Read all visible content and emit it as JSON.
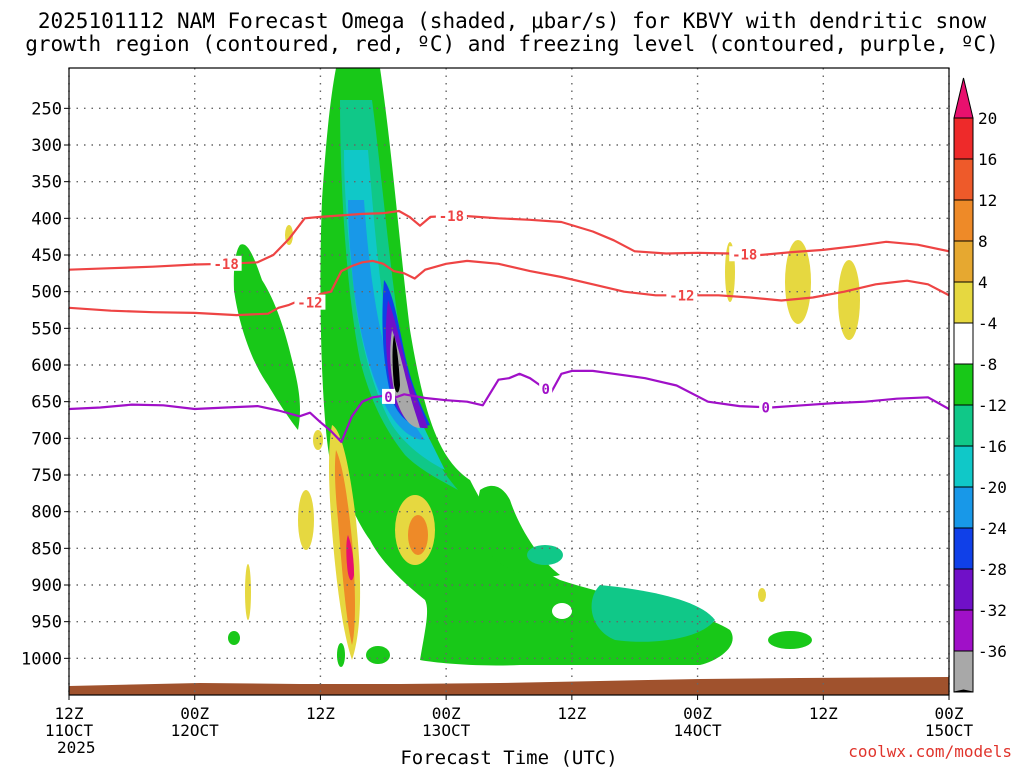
{
  "chart_data": {
    "type": "heatmap",
    "title_line1": "2025101112 NAM Forecast Omega (shaded, μbar/s) for KBVY with dendritic snow",
    "title_line2": "growth region (contoured, red, ºC) and freezing level (contoured, purple, ºC)",
    "xlabel": "Forecast Time (UTC)",
    "ylabel": "",
    "credit": "coolwx.com/models",
    "x_range_hours": [
      0,
      84
    ],
    "y_range_hPa": [
      1050,
      195
    ],
    "x_ticks": [
      {
        "hour": 0,
        "line1": "12Z",
        "line2": "11OCT",
        "line3": "2025"
      },
      {
        "hour": 12,
        "line1": "00Z",
        "line2": "12OCT",
        "line3": ""
      },
      {
        "hour": 24,
        "line1": "12Z",
        "line2": "",
        "line3": ""
      },
      {
        "hour": 36,
        "line1": "00Z",
        "line2": "13OCT",
        "line3": ""
      },
      {
        "hour": 48,
        "line1": "12Z",
        "line2": "",
        "line3": ""
      },
      {
        "hour": 60,
        "line1": "00Z",
        "line2": "14OCT",
        "line3": ""
      },
      {
        "hour": 72,
        "line1": "12Z",
        "line2": "",
        "line3": ""
      },
      {
        "hour": 84,
        "line1": "00Z",
        "line2": "15OCT",
        "line3": ""
      }
    ],
    "y_ticks": [
      250,
      300,
      350,
      400,
      450,
      500,
      550,
      600,
      650,
      700,
      750,
      800,
      850,
      900,
      950,
      1000
    ],
    "colorbar": {
      "labels": [
        "20",
        "16",
        "12",
        "8",
        "4",
        "-4",
        "-8",
        "-12",
        "-16",
        "-20",
        "-24",
        "-28",
        "-32",
        "-36"
      ],
      "colors": [
        "#e8106e",
        "#ee2a2a",
        "#ee5a2a",
        "#ee8a28",
        "#e6a830",
        "#e6d840",
        "#ffffff",
        "#18c818",
        "#10c888",
        "#10c8c8",
        "#1898e8",
        "#1040e8",
        "#7010c8",
        "#a010c8",
        "#a8a8a8",
        "#000000"
      ]
    },
    "series": [
      {
        "name": "-18",
        "color": "#ee4444",
        "label_hours": [
          15,
          36.5,
          64.5
        ],
        "x": [
          0,
          4,
          8,
          12,
          15,
          18,
          19.5,
          21,
          22.5,
          24,
          26,
          28,
          30,
          31.5,
          32.5,
          33.5,
          34.5,
          36,
          38,
          41,
          44,
          47,
          50,
          52,
          54,
          57,
          60,
          63,
          66,
          69,
          72,
          75,
          78,
          81,
          84
        ],
        "y": [
          470,
          468,
          466,
          463,
          462,
          460,
          450,
          428,
          400,
          398,
          396,
          394,
          393,
          390,
          398,
          410,
          398,
          397,
          397,
          400,
          402,
          405,
          418,
          430,
          445,
          448,
          447,
          448,
          450,
          446,
          443,
          438,
          432,
          436,
          445
        ]
      },
      {
        "name": "-12",
        "color": "#ee4444",
        "label_hours": [
          23,
          58.5
        ],
        "x": [
          0,
          4,
          8,
          12,
          16,
          19,
          20,
          21,
          22,
          23,
          24,
          25,
          26,
          27,
          28,
          29,
          30,
          31,
          32,
          33,
          34,
          36,
          38,
          41,
          44,
          47,
          50,
          53,
          56,
          59,
          62,
          65,
          68,
          71,
          74,
          77,
          80,
          82,
          84
        ],
        "y": [
          522,
          526,
          528,
          529,
          532,
          530,
          522,
          518,
          512,
          515,
          503,
          500,
          472,
          465,
          460,
          458,
          462,
          472,
          475,
          482,
          470,
          462,
          458,
          462,
          472,
          480,
          490,
          500,
          505,
          505,
          505,
          508,
          512,
          508,
          500,
          490,
          485,
          490,
          505
        ]
      },
      {
        "name": "0",
        "color": "#a010c8",
        "label_hours": [
          30.5,
          45.5,
          66.5
        ],
        "x": [
          0,
          3,
          6,
          9,
          12,
          15,
          18,
          20,
          22,
          23,
          24,
          25,
          26,
          27,
          28,
          29,
          30,
          31,
          32,
          34,
          36,
          38,
          39.5,
          41,
          42,
          43,
          44,
          45,
          46,
          47,
          48,
          50,
          52,
          55,
          58,
          61,
          64,
          67,
          70,
          73,
          76,
          79,
          82,
          84
        ],
        "y": [
          660,
          658,
          654,
          655,
          660,
          658,
          656,
          662,
          670,
          665,
          678,
          690,
          705,
          670,
          650,
          644,
          642,
          645,
          640,
          645,
          648,
          650,
          655,
          620,
          618,
          612,
          618,
          628,
          638,
          612,
          608,
          608,
          612,
          618,
          628,
          650,
          656,
          658,
          655,
          652,
          650,
          646,
          644,
          660
        ]
      }
    ],
    "omega_shading": "Strong ascent (negative omega, green→cyan→blue→purple→gray→black) concentrated 12Z 12OCT to 00Z 13OCT, tilting downward into low levels through 14OCT; weak positive (yellow/orange/magenta) cells near 13Z-15Z 12OCT."
  }
}
